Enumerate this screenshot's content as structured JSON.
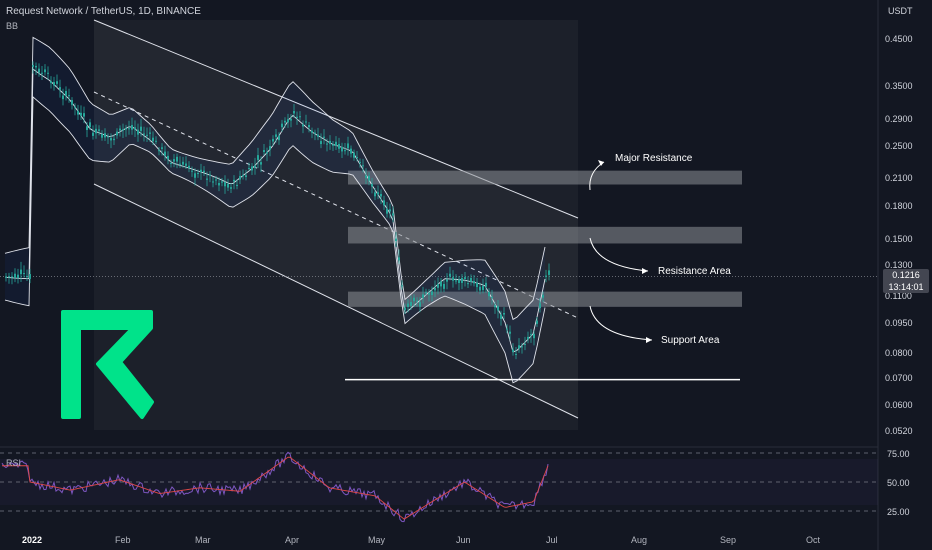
{
  "header": {
    "symbol": "Request Network / TetherUS, 1D, BINANCE",
    "indicator": "BB",
    "rsi_label": "RSI",
    "price_unit": "USDT"
  },
  "price_tag": {
    "price": "0.1216",
    "countdown": "13:14:01"
  },
  "annotations": {
    "major_resistance": "Major Resistance",
    "resistance_area": "Resistance Area",
    "support_area": "Support Area"
  },
  "colors": {
    "background": "#131722",
    "up": "#26a69a",
    "down": "#26a69a",
    "logo": "#00e38a",
    "rsi_line": "#7e57c2",
    "rsi_ma": "#e04848",
    "zone": "#8c8f96"
  },
  "chart_data": {
    "type": "candlestick",
    "price_axis": {
      "scale": "log",
      "ticks": [
        "0.4500",
        "0.3500",
        "0.2900",
        "0.2500",
        "0.2100",
        "0.1800",
        "0.1500",
        "0.1300",
        "0.1100",
        "0.0950",
        "0.0800",
        "0.0700",
        "0.0600",
        "0.0520"
      ]
    },
    "rsi_axis": {
      "ticks": [
        "75.00",
        "50.00",
        "25.00"
      ]
    },
    "x_ticks": [
      "2022",
      "Feb",
      "Mar",
      "Apr",
      "May",
      "Jun",
      "Jul",
      "Aug",
      "Sep",
      "Oct"
    ],
    "price_path": [
      {
        "date": "2022-01-01",
        "close": 0.39
      },
      {
        "date": "2022-01-08",
        "close": 0.36
      },
      {
        "date": "2022-01-15",
        "close": 0.32
      },
      {
        "date": "2022-01-22",
        "close": 0.27
      },
      {
        "date": "2022-01-29",
        "close": 0.26
      },
      {
        "date": "2022-02-05",
        "close": 0.28
      },
      {
        "date": "2022-02-12",
        "close": 0.26
      },
      {
        "date": "2022-02-19",
        "close": 0.23
      },
      {
        "date": "2022-02-26",
        "close": 0.22
      },
      {
        "date": "2022-03-05",
        "close": 0.21
      },
      {
        "date": "2022-03-12",
        "close": 0.2
      },
      {
        "date": "2022-03-19",
        "close": 0.22
      },
      {
        "date": "2022-03-26",
        "close": 0.25
      },
      {
        "date": "2022-04-02",
        "close": 0.3
      },
      {
        "date": "2022-04-09",
        "close": 0.27
      },
      {
        "date": "2022-04-16",
        "close": 0.25
      },
      {
        "date": "2022-04-23",
        "close": 0.24
      },
      {
        "date": "2022-04-30",
        "close": 0.2
      },
      {
        "date": "2022-05-07",
        "close": 0.17
      },
      {
        "date": "2022-05-11",
        "close": 0.1
      },
      {
        "date": "2022-05-18",
        "close": 0.11
      },
      {
        "date": "2022-05-25",
        "close": 0.12
      },
      {
        "date": "2022-06-01",
        "close": 0.118
      },
      {
        "date": "2022-06-08",
        "close": 0.115
      },
      {
        "date": "2022-06-15",
        "close": 0.095
      },
      {
        "date": "2022-06-18",
        "close": 0.08
      },
      {
        "date": "2022-06-25",
        "close": 0.09
      },
      {
        "date": "2022-06-29",
        "close": 0.1216
      }
    ],
    "rsi_path": [
      {
        "date": "2022-01-01",
        "value": 50
      },
      {
        "date": "2022-01-15",
        "value": 43
      },
      {
        "date": "2022-02-01",
        "value": 52
      },
      {
        "date": "2022-02-15",
        "value": 40
      },
      {
        "date": "2022-03-01",
        "value": 45
      },
      {
        "date": "2022-03-15",
        "value": 42
      },
      {
        "date": "2022-04-01",
        "value": 72
      },
      {
        "date": "2022-04-15",
        "value": 45
      },
      {
        "date": "2022-05-01",
        "value": 38
      },
      {
        "date": "2022-05-11",
        "value": 18
      },
      {
        "date": "2022-05-20",
        "value": 32
      },
      {
        "date": "2022-06-01",
        "value": 50
      },
      {
        "date": "2022-06-15",
        "value": 28
      },
      {
        "date": "2022-06-25",
        "value": 33
      },
      {
        "date": "2022-06-30",
        "value": 64
      }
    ],
    "zones": [
      {
        "name": "Major Resistance",
        "low": 0.202,
        "high": 0.218
      },
      {
        "name": "Resistance Area",
        "low": 0.146,
        "high": 0.16
      },
      {
        "name": "Support Area",
        "low": 0.103,
        "high": 0.112
      }
    ],
    "support_line": 0.069,
    "current_price": 0.1216
  }
}
